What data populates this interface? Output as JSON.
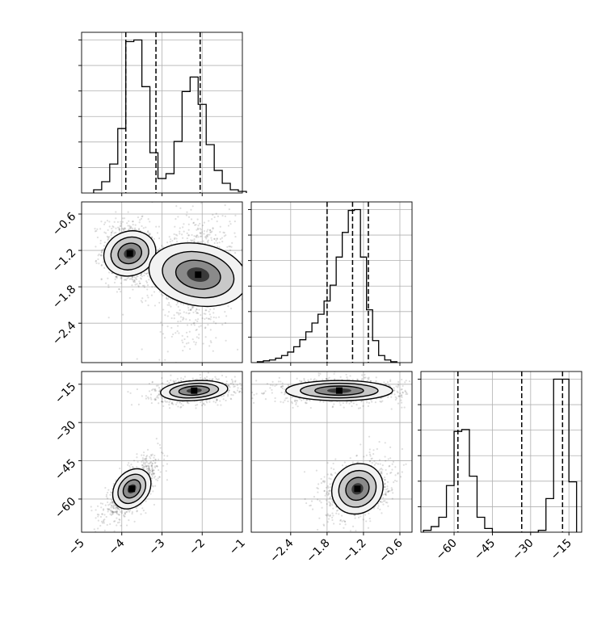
{
  "chart_data": {
    "type": "corner",
    "grid": true,
    "parameters": [
      {
        "index": 0,
        "range": [
          -5,
          -1
        ],
        "ticks": [
          "−5",
          "−4",
          "−3",
          "−2",
          "−1"
        ],
        "tick_values": [
          -5,
          -4,
          -3,
          -2,
          -1
        ],
        "quantiles": [
          -3.9,
          -3.15,
          -2.05
        ],
        "hist_bins": [
          -4.7,
          -4.5,
          -4.3,
          -4.1,
          -3.9,
          -3.7,
          -3.5,
          -3.3,
          -3.1,
          -2.9,
          -2.7,
          -2.5,
          -2.3,
          -2.1,
          -1.9,
          -1.7,
          -1.5,
          -1.3,
          -1.1,
          -0.9
        ],
        "hist_counts": [
          2,
          7,
          18,
          40,
          94,
          95,
          66,
          25,
          9,
          12,
          32,
          63,
          72,
          55,
          30,
          14,
          6,
          2,
          1
        ]
      },
      {
        "index": 1,
        "range": [
          -3.05,
          -0.4
        ],
        "ticks": [
          "−2.4",
          "−1.8",
          "−1.2",
          "−0.6"
        ],
        "tick_values": [
          -2.4,
          -1.8,
          -1.2,
          -0.6
        ],
        "quantiles": [
          -1.8,
          -1.38,
          -1.12
        ],
        "hist_bins": [
          -2.95,
          -2.85,
          -2.75,
          -2.65,
          -2.55,
          -2.45,
          -2.35,
          -2.25,
          -2.15,
          -2.05,
          -1.95,
          -1.85,
          -1.75,
          -1.65,
          -1.55,
          -1.45,
          -1.35,
          -1.25,
          -1.15,
          -1.05,
          -0.95,
          -0.85,
          -0.75,
          -0.65
        ],
        "hist_counts": [
          1,
          2,
          3,
          5,
          8,
          12,
          18,
          26,
          35,
          45,
          55,
          70,
          88,
          120,
          148,
          173,
          174,
          120,
          60,
          25,
          8,
          3,
          1
        ]
      },
      {
        "index": 2,
        "range": [
          -73,
          -10
        ],
        "ticks": [
          "−60",
          "−45",
          "−30",
          "−15"
        ],
        "tick_values": [
          -60,
          -45,
          -30,
          -15
        ],
        "quantiles": [
          -58.5,
          -33.5,
          -17.5
        ],
        "hist_bins": [
          -72,
          -69,
          -66,
          -63,
          -60,
          -57,
          -54,
          -51,
          -48,
          -45,
          -42,
          -39,
          -36,
          -33,
          -30,
          -27,
          -24,
          -21,
          -18,
          -15,
          -12
        ],
        "hist_counts": [
          1,
          3,
          8,
          25,
          54,
          55,
          30,
          8,
          2,
          0,
          0,
          0,
          0,
          0,
          0,
          1,
          18,
          82,
          82,
          27
        ]
      }
    ],
    "scatter_panels": [
      {
        "x_param": 0,
        "y_param": 1,
        "clusters": [
          {
            "cx": -3.8,
            "cy": -1.25,
            "sx": 0.25,
            "sy": 0.2,
            "rho": -0.15
          },
          {
            "cx": -2.1,
            "cy": -1.6,
            "sx": 0.35,
            "sy": 0.38,
            "rho": 0.2
          }
        ]
      },
      {
        "x_param": 0,
        "y_param": 2,
        "clusters": [
          {
            "cx": -2.2,
            "cy": -17.5,
            "sx": 0.38,
            "sy": 1.8,
            "rho": 0.2
          },
          {
            "cx": -3.75,
            "cy": -56.0,
            "sx": 0.25,
            "sy": 4.5,
            "rho": 0.75
          }
        ]
      },
      {
        "x_param": 1,
        "y_param": 2,
        "clusters": [
          {
            "cx": -1.6,
            "cy": -17.5,
            "sx": 0.4,
            "sy": 1.8,
            "rho": 0.0
          },
          {
            "cx": -1.3,
            "cy": -56.0,
            "sx": 0.2,
            "sy": 4.5,
            "rho": 0.3
          }
        ]
      }
    ]
  }
}
